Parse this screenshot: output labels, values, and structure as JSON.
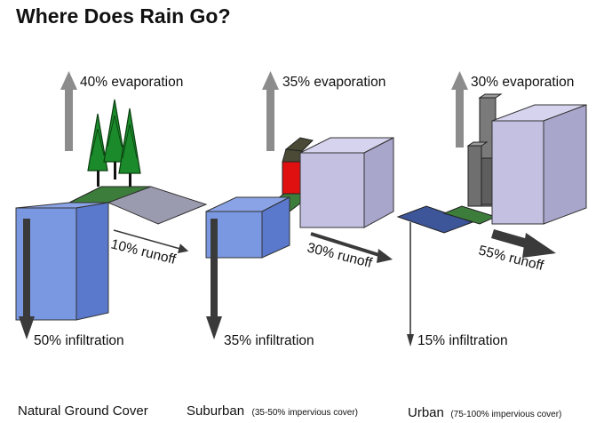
{
  "title": "Where Does Rain Go?",
  "colors": {
    "water_front": "#6f8fe0",
    "water_top": "#8aa3e6",
    "water_side": "#5a79cc",
    "grass": "#3d7d3b",
    "pavement": "#9b9bb0",
    "dark_pavement": "#3d5599",
    "building_front": "#c3c0e2",
    "building_side": "#a9a6cc",
    "building_top": "#d6d3ee",
    "tower": "#7a7a7a",
    "tree": "#1a8a2a",
    "house_wall": "#e01010",
    "house_roof": "#4a4a36",
    "arrow_grey": "#8c8c8c",
    "arrow_dark": "#3a3a3a"
  },
  "scenarios": [
    {
      "name": "Natural Ground Cover",
      "impervious": "",
      "evaporation": "40% evaporation",
      "runoff": "10% runoff",
      "infiltration": "50% infiltration"
    },
    {
      "name": "Suburban",
      "impervious": "(35-50% impervious cover)",
      "evaporation": "35% evaporation",
      "runoff": "30% runoff",
      "infiltration": "35% infiltration"
    },
    {
      "name": "Urban",
      "impervious": "(75-100% impervious cover)",
      "evaporation": "30% evaporation",
      "runoff": "55% runoff",
      "infiltration": "15% infiltration"
    }
  ]
}
